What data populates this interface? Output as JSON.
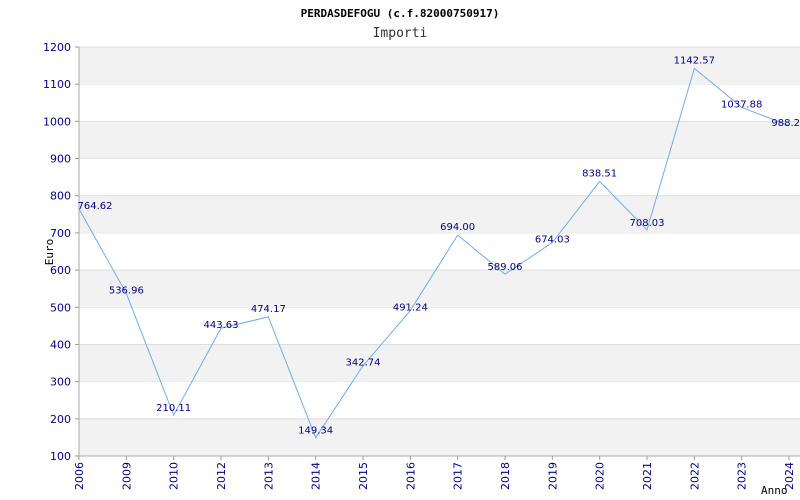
{
  "chart_data": {
    "type": "line",
    "title": "PERDASDEFOGU (c.f.82000750917)",
    "subtitle": "Importi",
    "xlabel": "Anno",
    "ylabel": "Euro",
    "ylim": [
      100,
      1200
    ],
    "yticks": [
      100,
      200,
      300,
      400,
      500,
      600,
      700,
      800,
      900,
      1000,
      1100,
      1200
    ],
    "grid": "alternating-bands",
    "line_color": "#6aaef0",
    "band_color": "#f2f2f2",
    "x": [
      "2006",
      "2009",
      "2010",
      "2012",
      "2013",
      "2014",
      "2015",
      "2016",
      "2017",
      "2018",
      "2019",
      "2020",
      "2021",
      "2022",
      "2023",
      "2024"
    ],
    "values": [
      764.62,
      536.96,
      210.11,
      443.63,
      474.17,
      149.34,
      342.74,
      491.24,
      694.0,
      589.06,
      674.03,
      838.51,
      708.03,
      1142.57,
      1037.88,
      988.2
    ],
    "data_labels": [
      "764.62",
      "536.96",
      "210.11",
      "443.63",
      "474.17",
      "149.34",
      "342.74",
      "491.24",
      "694.00",
      "589.06",
      "674.03",
      "838.51",
      "708.03",
      "1142.57",
      "1037.88",
      "988.2"
    ]
  }
}
